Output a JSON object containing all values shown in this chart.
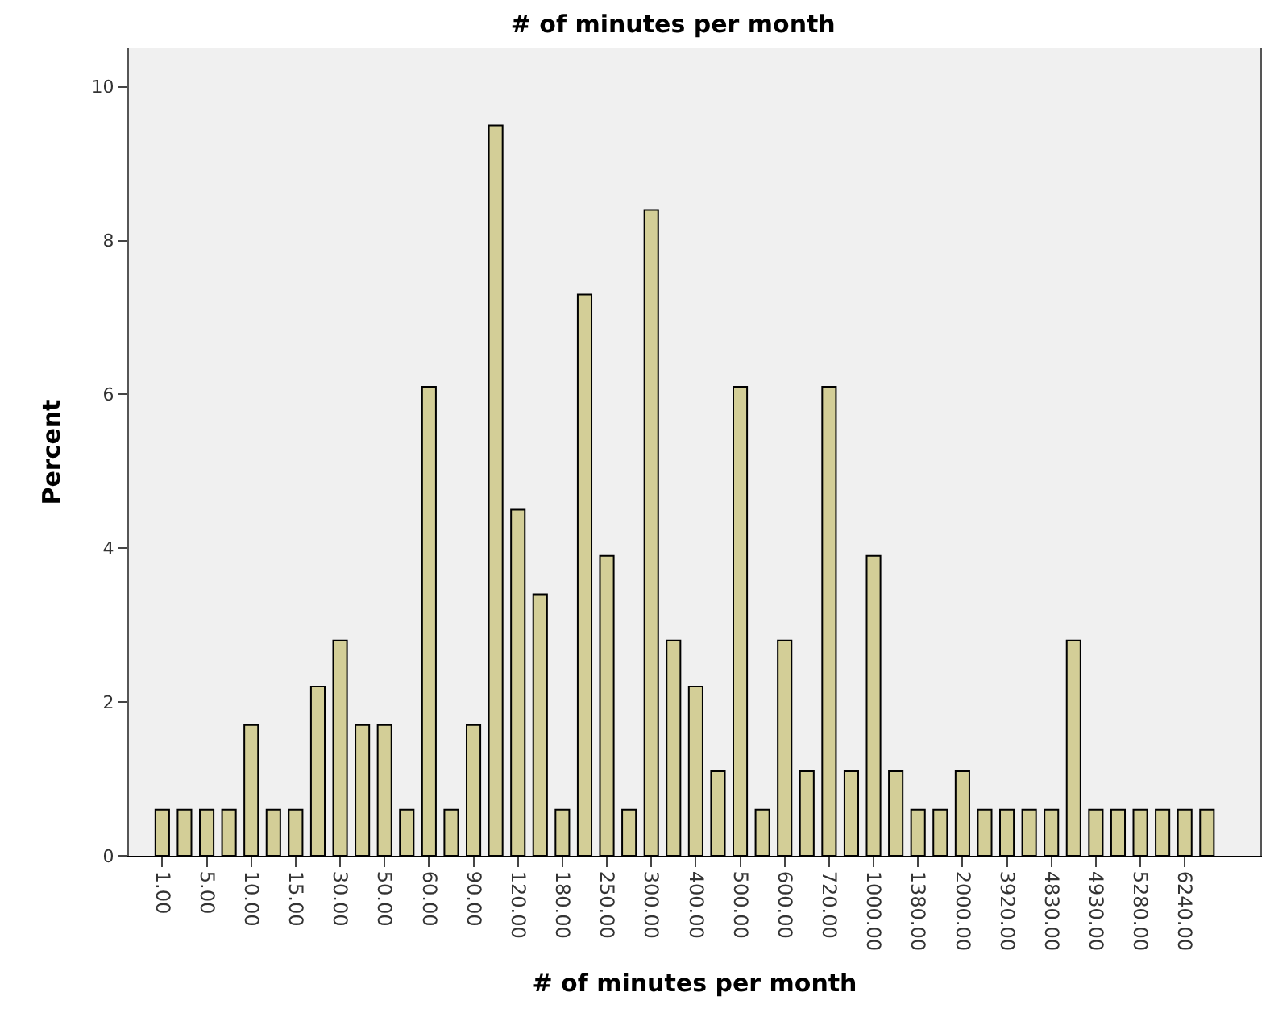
{
  "chart_data": {
    "type": "bar",
    "title": "# of minutes per month",
    "xlabel": "# of minutes per month",
    "ylabel": "Percent",
    "categories": [
      "1.00",
      null,
      "5.00",
      null,
      "10.00",
      null,
      "15.00",
      null,
      "30.00",
      null,
      "50.00",
      null,
      "60.00",
      null,
      "90.00",
      null,
      "120.00",
      null,
      "180.00",
      null,
      "250.00",
      null,
      "300.00",
      null,
      "400.00",
      null,
      "500.00",
      null,
      "600.00",
      null,
      "720.00",
      null,
      "1000.00",
      null,
      "1380.00",
      null,
      "2000.00",
      null,
      "3920.00",
      null,
      "4830.00",
      null,
      "4930.00",
      null,
      "5280.00",
      null,
      "6240.00",
      null
    ],
    "values": [
      0.6,
      0.6,
      0.6,
      0.6,
      1.7,
      0.6,
      0.6,
      2.2,
      2.8,
      1.7,
      1.7,
      0.6,
      6.1,
      0.6,
      1.7,
      9.5,
      4.5,
      3.4,
      0.6,
      7.3,
      3.9,
      0.6,
      8.4,
      2.8,
      2.2,
      1.1,
      6.1,
      0.6,
      2.8,
      1.1,
      6.1,
      1.1,
      3.9,
      1.1,
      0.6,
      0.6,
      1.1,
      0.6,
      0.6,
      0.6,
      0.6,
      2.8,
      0.6,
      0.6,
      0.6,
      0.6,
      0.6,
      0.6
    ],
    "color": "#d3ce97",
    "ylim": [
      0,
      10.5
    ],
    "yticks": [
      0,
      2,
      4,
      6,
      8,
      10
    ],
    "grid": false,
    "legend": false
  }
}
